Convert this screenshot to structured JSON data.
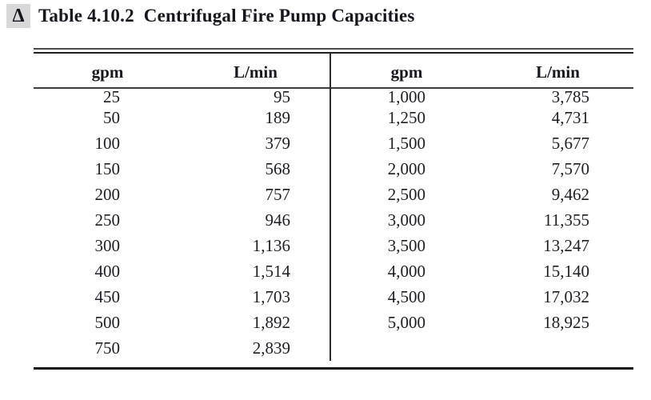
{
  "title": {
    "marker": "Δ",
    "number": "Table 4.10.2",
    "text": "Centrifugal Fire Pump Capacities"
  },
  "colors": {
    "ink": "#1d1d25",
    "rule": "#2e2e2e",
    "marker_background": "#d8d8d8"
  },
  "table": {
    "headers": {
      "left_gpm": "gpm",
      "left_lmin": "L/min",
      "right_gpm": "gpm",
      "right_lmin": "L/min"
    },
    "left_rows": [
      [
        "25",
        "95"
      ],
      [
        "50",
        "189"
      ],
      [
        "100",
        "379"
      ],
      [
        "150",
        "568"
      ],
      [
        "200",
        "757"
      ],
      [
        "250",
        "946"
      ],
      [
        "300",
        "1,136"
      ],
      [
        "400",
        "1,514"
      ],
      [
        "450",
        "1,703"
      ],
      [
        "500",
        "1,892"
      ],
      [
        "750",
        "2,839"
      ]
    ],
    "right_rows": [
      [
        "1,000",
        "3,785"
      ],
      [
        "1,250",
        "4,731"
      ],
      [
        "1,500",
        "5,677"
      ],
      [
        "2,000",
        "7,570"
      ],
      [
        "2,500",
        "9,462"
      ],
      [
        "3,000",
        "11,355"
      ],
      [
        "3,500",
        "13,247"
      ],
      [
        "4,000",
        "15,140"
      ],
      [
        "4,500",
        "17,032"
      ],
      [
        "5,000",
        "18,925"
      ]
    ]
  }
}
